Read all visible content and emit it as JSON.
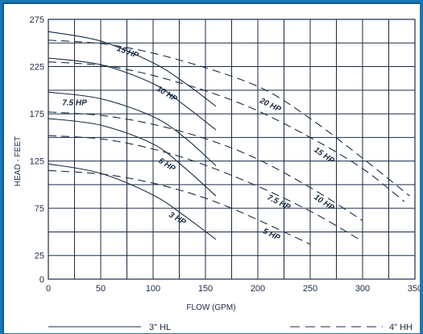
{
  "chart_data": {
    "type": "line",
    "title": "",
    "xlabel": "FLOW (GPM)",
    "ylabel": "HEAD - FEET",
    "xlim": [
      0,
      350
    ],
    "ylim": [
      0,
      275
    ],
    "x_ticks": [
      "0",
      "50",
      "100",
      "150",
      "200",
      "250",
      "300",
      "350"
    ],
    "y_ticks": [
      "0",
      "25",
      "75",
      "125",
      "175",
      "225",
      "275"
    ],
    "x_tick_values": [
      0,
      50,
      100,
      150,
      200,
      250,
      300,
      350
    ],
    "y_tick_values": [
      0,
      25,
      75,
      125,
      175,
      225,
      275
    ],
    "x_grid": [
      0,
      25,
      50,
      75,
      100,
      125,
      150,
      175,
      200,
      225,
      250,
      275,
      300,
      325,
      350
    ],
    "y_grid": [
      0,
      25,
      50,
      75,
      100,
      125,
      150,
      175,
      200,
      225,
      250,
      275
    ],
    "grid": true,
    "legend": [
      {
        "label": "3\" HL",
        "style": "solid"
      },
      {
        "label": "4\" HH",
        "style": "dashed"
      }
    ],
    "series": [
      {
        "group": "3\" HL",
        "style": "solid",
        "points": [
          [
            0,
            122
          ],
          [
            50,
            112
          ],
          [
            100,
            89
          ],
          [
            130,
            67
          ],
          [
            160,
            42
          ]
        ]
      },
      {
        "group": "3\" HL",
        "style": "solid",
        "points": [
          [
            0,
            170
          ],
          [
            50,
            163
          ],
          [
            100,
            143
          ],
          [
            130,
            118
          ],
          [
            160,
            88
          ]
        ]
      },
      {
        "group": "3\" HL",
        "style": "solid",
        "points": [
          [
            0,
            198
          ],
          [
            50,
            191
          ],
          [
            100,
            172
          ],
          [
            130,
            150
          ],
          [
            160,
            120
          ]
        ]
      },
      {
        "group": "3\" HL",
        "style": "solid",
        "points": [
          [
            0,
            234
          ],
          [
            50,
            227
          ],
          [
            100,
            207
          ],
          [
            130,
            184
          ],
          [
            160,
            158
          ]
        ]
      },
      {
        "group": "3\" HL",
        "style": "solid",
        "points": [
          [
            0,
            262
          ],
          [
            50,
            252
          ],
          [
            100,
            229
          ],
          [
            130,
            208
          ],
          [
            160,
            183
          ]
        ]
      },
      {
        "group": "4\" HH",
        "style": "dashed",
        "points": [
          [
            0,
            115
          ],
          [
            60,
            110
          ],
          [
            120,
            96
          ],
          [
            175,
            75
          ],
          [
            250,
            37
          ]
        ]
      },
      {
        "group": "4\" HH",
        "style": "dashed",
        "points": [
          [
            0,
            152
          ],
          [
            60,
            147
          ],
          [
            125,
            130
          ],
          [
            190,
            103
          ],
          [
            250,
            72
          ],
          [
            300,
            40
          ]
        ]
      },
      {
        "group": "4\" HH",
        "style": "dashed",
        "points": [
          [
            0,
            177
          ],
          [
            60,
            172
          ],
          [
            125,
            157
          ],
          [
            190,
            132
          ],
          [
            250,
            97
          ],
          [
            300,
            62
          ]
        ]
      },
      {
        "group": "4\" HH",
        "style": "dashed",
        "points": [
          [
            0,
            230
          ],
          [
            60,
            225
          ],
          [
            125,
            208
          ],
          [
            190,
            183
          ],
          [
            250,
            150
          ],
          [
            300,
            117
          ],
          [
            340,
            82
          ]
        ]
      },
      {
        "group": "4\" HH",
        "style": "dashed",
        "points": [
          [
            0,
            253
          ],
          [
            60,
            248
          ],
          [
            125,
            232
          ],
          [
            200,
            204
          ],
          [
            250,
            170
          ],
          [
            300,
            128
          ],
          [
            345,
            88
          ]
        ]
      }
    ],
    "annotations": [
      {
        "text": "15 HP",
        "x": 75,
        "y": 238,
        "angle": 20
      },
      {
        "text": "10 HP",
        "x": 112,
        "y": 194,
        "angle": 32
      },
      {
        "text": "7.5 HP",
        "x": 25,
        "y": 184,
        "angle": 0
      },
      {
        "text": "5 HP",
        "x": 112,
        "y": 119,
        "angle": 32
      },
      {
        "text": "3 HP",
        "x": 122,
        "y": 62,
        "angle": 30
      },
      {
        "text": "20 HP",
        "x": 211,
        "y": 182,
        "angle": 26
      },
      {
        "text": "15 HP",
        "x": 262,
        "y": 129,
        "angle": 34
      },
      {
        "text": "7.5 HP",
        "x": 219,
        "y": 79,
        "angle": 26
      },
      {
        "text": "10 HP",
        "x": 262,
        "y": 79,
        "angle": 34
      },
      {
        "text": "5 HP",
        "x": 212,
        "y": 45,
        "angle": 26
      }
    ]
  }
}
